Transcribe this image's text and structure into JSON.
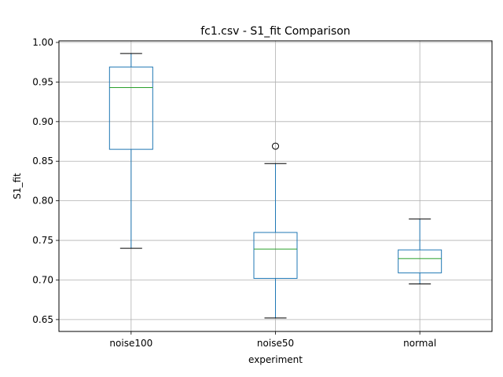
{
  "chart_data": {
    "type": "box",
    "title": "fc1.csv - S1_fit Comparison",
    "xlabel": "experiment",
    "ylabel": "S1_fit",
    "ylim": [
      0.635,
      1.002
    ],
    "yticks": [
      "0.65",
      "0.70",
      "0.75",
      "0.80",
      "0.85",
      "0.90",
      "0.95",
      "1.00"
    ],
    "ytick_values": [
      0.65,
      0.7,
      0.75,
      0.8,
      0.85,
      0.9,
      0.95,
      1.0
    ],
    "grid": true,
    "categories": [
      "noise100",
      "noise50",
      "normal"
    ],
    "boxes": [
      {
        "name": "noise100",
        "whisker_low": 0.74,
        "q1": 0.865,
        "median": 0.943,
        "q3": 0.969,
        "whisker_high": 0.986,
        "outliers": []
      },
      {
        "name": "noise50",
        "whisker_low": 0.652,
        "q1": 0.702,
        "median": 0.739,
        "q3": 0.76,
        "whisker_high": 0.847,
        "outliers": [
          0.869
        ]
      },
      {
        "name": "normal",
        "whisker_low": 0.695,
        "q1": 0.709,
        "median": 0.727,
        "q3": 0.738,
        "whisker_high": 0.777,
        "outliers": []
      }
    ],
    "colors": {
      "box": "#1f77b4",
      "median": "#2ca02c",
      "whisker_cap": "#000000",
      "grid": "#b0b0b0",
      "flier": "#000000"
    }
  }
}
